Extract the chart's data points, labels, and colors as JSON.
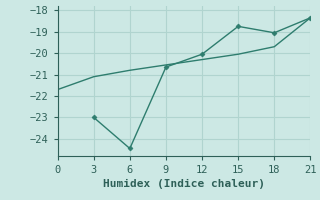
{
  "line1_x": [
    0,
    3,
    6,
    9,
    12,
    15,
    18,
    21
  ],
  "line1_y": [
    -21.7,
    -21.1,
    -20.8,
    -20.55,
    -20.3,
    -20.05,
    -19.7,
    -18.35
  ],
  "line2_x": [
    3,
    6,
    9,
    12,
    15,
    18,
    21
  ],
  "line2_y": [
    -23.0,
    -24.45,
    -20.65,
    -20.05,
    -18.75,
    -19.05,
    -18.35
  ],
  "line_color": "#2e7d6e",
  "bg_color": "#cce8e4",
  "grid_color": "#b0d4cf",
  "xlabel": "Humidex (Indice chaleur)",
  "xlim": [
    0,
    21
  ],
  "ylim": [
    -24.8,
    -17.8
  ],
  "xticks": [
    0,
    3,
    6,
    9,
    12,
    15,
    18,
    21
  ],
  "yticks": [
    -24,
    -23,
    -22,
    -21,
    -20,
    -19,
    -18
  ],
  "font_color": "#2e6058",
  "tick_fontsize": 7.5,
  "xlabel_fontsize": 8.0
}
